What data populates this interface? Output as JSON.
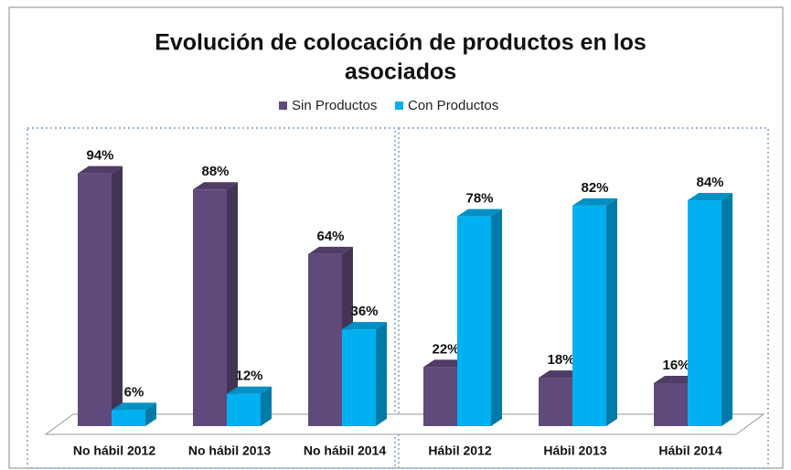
{
  "chart_data": {
    "type": "bar3d",
    "title": "Evolución de colocación de productos en los asociados",
    "title_lines": [
      "Evolución de colocación de productos en los",
      "asociados"
    ],
    "categories": [
      "No hábil 2012",
      "No hábil 2013",
      "No hábil 2014",
      "Hábil 2012",
      "Hábil 2013",
      "Hábil 2014"
    ],
    "series": [
      {
        "name": "Sin Productos",
        "color": "#604a7b",
        "values": [
          94,
          88,
          64,
          22,
          18,
          16
        ],
        "value_labels": [
          "94%",
          "88%",
          "64%",
          "22%",
          "18%",
          "16%"
        ]
      },
      {
        "name": "Con Productos",
        "color": "#00b0f0",
        "values": [
          6,
          12,
          36,
          78,
          82,
          84
        ],
        "value_labels": [
          "6%",
          "12%",
          "36%",
          "78%",
          "82%",
          "84%"
        ]
      }
    ],
    "legend": "top"
  }
}
